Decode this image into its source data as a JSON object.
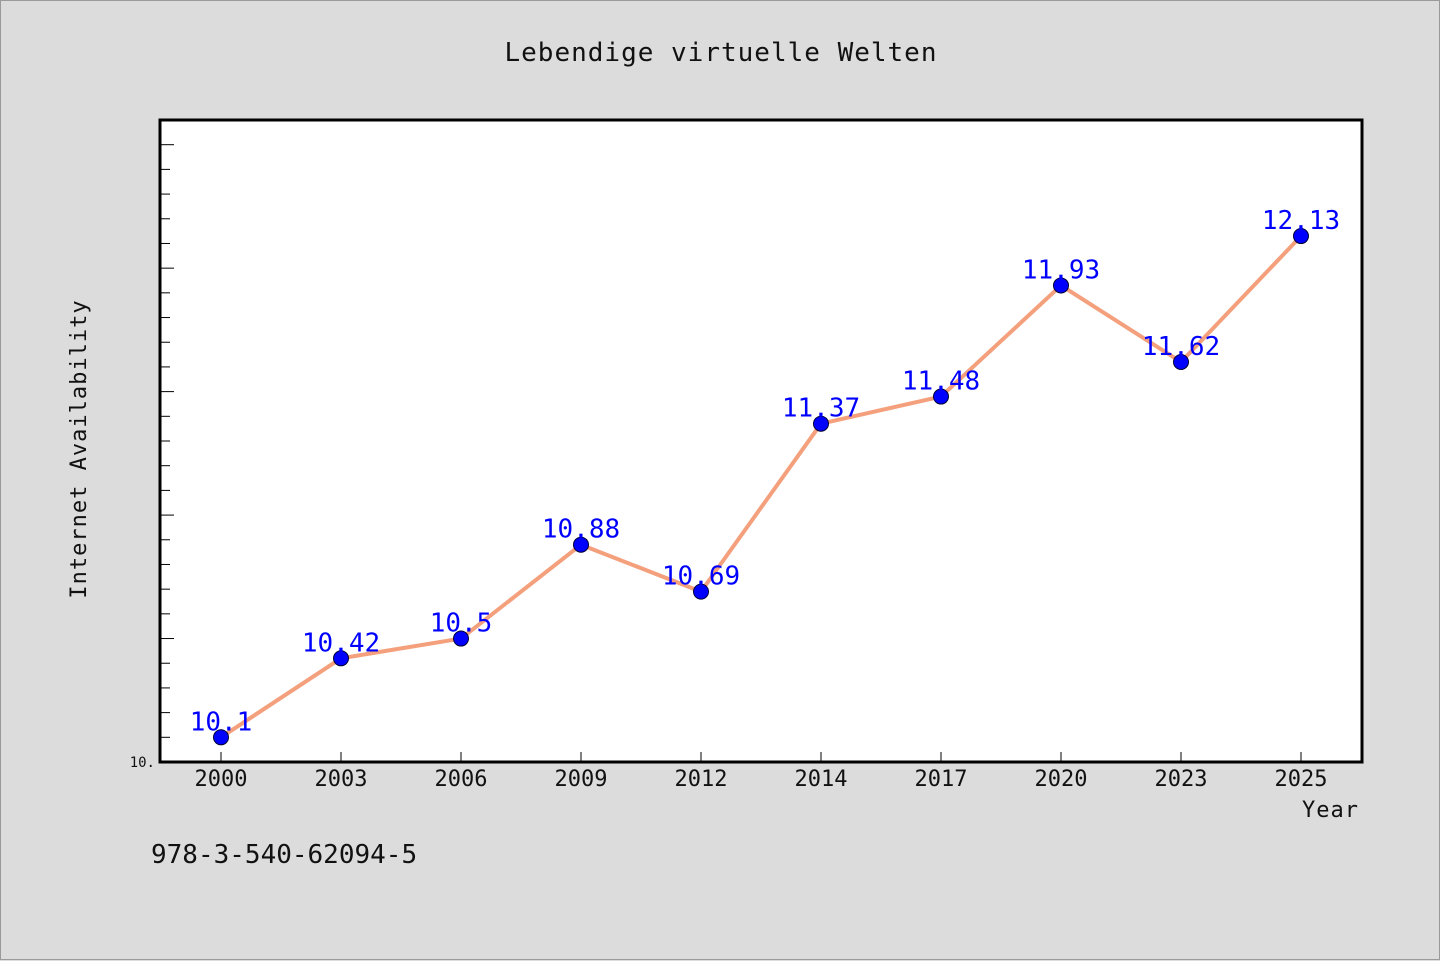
{
  "chart_data": {
    "type": "line",
    "title": "Lebendige virtuelle Welten",
    "xlabel": "Year",
    "ylabel": "Internet Availability",
    "categories": [
      "2000",
      "2003",
      "2006",
      "2009",
      "2012",
      "2014",
      "2017",
      "2020",
      "2023",
      "2025"
    ],
    "values": [
      10.1,
      10.42,
      10.5,
      10.88,
      10.69,
      11.37,
      11.48,
      11.93,
      11.62,
      12.13
    ],
    "data_labels": [
      "10.1",
      "10.42",
      "10.5",
      "10.88",
      "10.69",
      "11.37",
      "11.48",
      "11.93",
      "11.62",
      "12.13"
    ],
    "ylim": [
      10.0,
      12.6
    ],
    "y_min_label": "10.",
    "grid": false,
    "legend": "none",
    "line_color": "#f4a07c",
    "marker_color": "#0000ff",
    "label_color": "#0000ff",
    "background": "#dcdcdc",
    "plot_background": "#ffffff"
  },
  "footnote": "978-3-540-62094-5"
}
